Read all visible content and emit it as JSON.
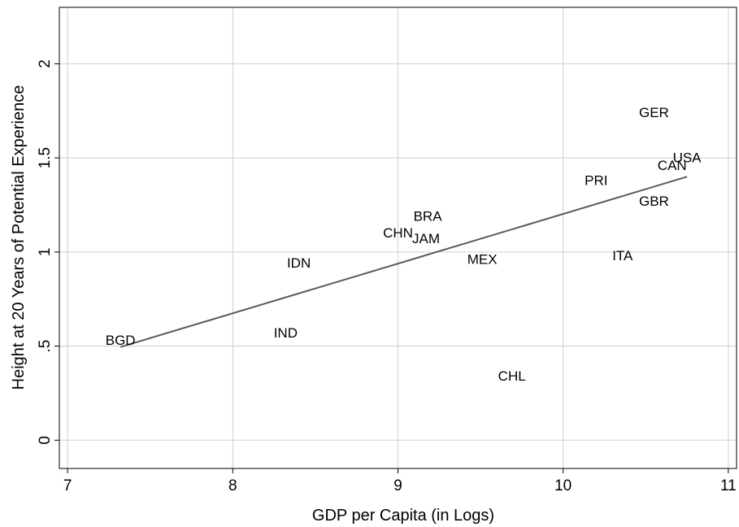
{
  "chart_data": {
    "type": "scatter",
    "title": "",
    "xlabel": "GDP per Capita (in Logs)",
    "ylabel": "Height at 20 Years of Potential Experience",
    "xlim": [
      6.95,
      11.05
    ],
    "ylim": [
      -0.15,
      2.3
    ],
    "xticks": [
      7,
      8,
      9,
      10,
      11
    ],
    "xtick_labels": [
      "7",
      "8",
      "9",
      "10",
      "11"
    ],
    "yticks": [
      0,
      0.5,
      1,
      1.5,
      2
    ],
    "ytick_labels": [
      "0",
      ".5",
      "1",
      "1.5",
      "2"
    ],
    "grid": true,
    "points": [
      {
        "label": "BGD",
        "x": 7.32,
        "y": 0.53
      },
      {
        "label": "IND",
        "x": 8.32,
        "y": 0.57
      },
      {
        "label": "IDN",
        "x": 8.4,
        "y": 0.94
      },
      {
        "label": "CHN",
        "x": 9.0,
        "y": 1.1
      },
      {
        "label": "JAM",
        "x": 9.17,
        "y": 1.07
      },
      {
        "label": "BRA",
        "x": 9.18,
        "y": 1.19
      },
      {
        "label": "MEX",
        "x": 9.51,
        "y": 0.96
      },
      {
        "label": "CHL",
        "x": 9.69,
        "y": 0.34
      },
      {
        "label": "PRI",
        "x": 10.2,
        "y": 1.38
      },
      {
        "label": "ITA",
        "x": 10.36,
        "y": 0.98
      },
      {
        "label": "GBR",
        "x": 10.55,
        "y": 1.27
      },
      {
        "label": "GER",
        "x": 10.55,
        "y": 1.74
      },
      {
        "label": "CAN",
        "x": 10.66,
        "y": 1.46
      },
      {
        "label": "USA",
        "x": 10.75,
        "y": 1.5
      }
    ],
    "fit_line": {
      "x": [
        7.32,
        10.75
      ],
      "y": [
        0.495,
        1.4
      ]
    }
  }
}
